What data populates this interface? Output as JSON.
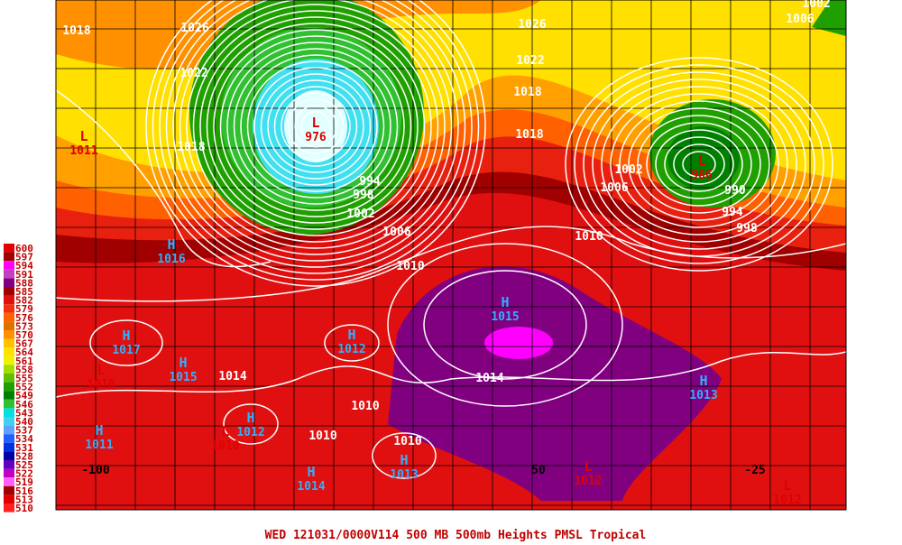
{
  "footer": "WED 121031/0000V114   500 MB 500mb Heights PMSL Tropical",
  "color_scale": {
    "values": [
      600,
      597,
      594,
      591,
      588,
      585,
      582,
      579,
      576,
      573,
      570,
      567,
      564,
      561,
      558,
      555,
      552,
      549,
      546,
      543,
      540,
      537,
      534,
      531,
      528,
      525,
      522,
      519,
      516,
      513,
      510
    ],
    "colors": [
      "#e00000",
      "#a00000",
      "#ff00ff",
      "#c040c0",
      "#800080",
      "#a00000",
      "#e01010",
      "#f03010",
      "#ff6000",
      "#e07000",
      "#ff9000",
      "#ffc000",
      "#ffe000",
      "#f0f000",
      "#a0e000",
      "#60c000",
      "#20a000",
      "#008000",
      "#30c030",
      "#00e0e0",
      "#40d0f0",
      "#60a0ff",
      "#2060ff",
      "#0030e0",
      "#0000a0",
      "#6000c0",
      "#c000c0",
      "#ff60ff",
      "#a00000",
      "#e00000",
      "#ff2020"
    ]
  },
  "pressure_centers": [
    {
      "letter": "H",
      "value": "1015"
    },
    {
      "letter": "H",
      "value": "1013"
    },
    {
      "letter": "H",
      "value": "1017"
    },
    {
      "letter": "H",
      "value": "1015"
    },
    {
      "letter": "H",
      "value": "1012"
    },
    {
      "letter": "H",
      "value": "1011"
    },
    {
      "letter": "H",
      "value": "1012"
    },
    {
      "letter": "H",
      "value": "1014"
    },
    {
      "letter": "H",
      "value": "1013"
    },
    {
      "letter": "H",
      "value": "1016"
    },
    {
      "letter": "L",
      "value": "1010"
    },
    {
      "letter": "L",
      "value": "1012"
    },
    {
      "letter": "L",
      "value": "1012"
    },
    {
      "letter": "L",
      "value": "1011"
    },
    {
      "letter": "L",
      "value": "1010"
    },
    {
      "letter": "L",
      "value": "986"
    },
    {
      "letter": "L",
      "value": "976"
    }
  ],
  "contour_labels": [
    "1018",
    "1026",
    "1022",
    "1018",
    "1026",
    "1022",
    "1018",
    "1018",
    "1002",
    "1006",
    "1010",
    "1006",
    "1010",
    "1014",
    "1014",
    "1010",
    "1010",
    "1010",
    "990",
    "994",
    "998",
    "1002",
    "1006",
    "998",
    "1002",
    "994"
  ],
  "longitude_labels": [
    "-100",
    "50",
    "-25"
  ]
}
